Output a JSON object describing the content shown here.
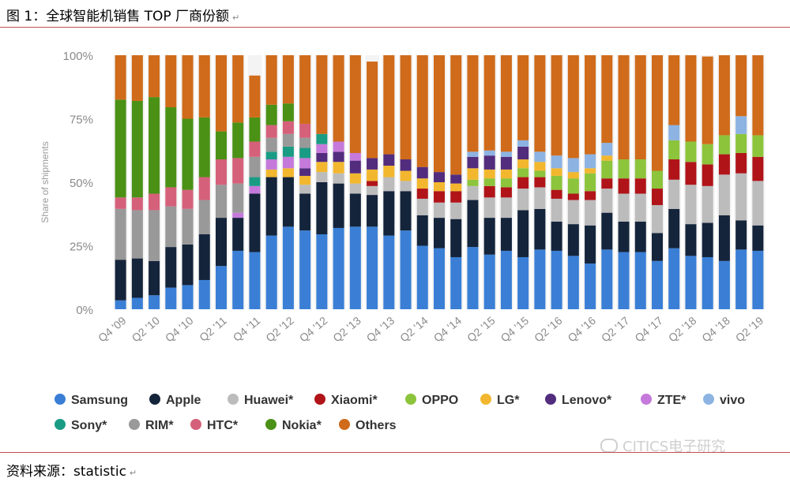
{
  "title": "图 1：全球智能机销售 TOP 厂商份额",
  "source": "资料来源：statistic",
  "watermark": "CITICS电子研究",
  "return_mark": "↵",
  "chart_data": {
    "type": "bar",
    "stacked": true,
    "ylabel": "Share of shipments",
    "ylim": [
      0,
      100
    ],
    "yticks": [
      "0%",
      "25%",
      "50%",
      "75%",
      "100%"
    ],
    "grid": false,
    "legend_position": "bottom",
    "categories": [
      "Q4 '09",
      "Q1 '10",
      "Q2 '10",
      "Q3 '10",
      "Q4 '10",
      "Q1 '11",
      "Q2 '11",
      "Q3 '11",
      "Q4 '11",
      "Q1 '12",
      "Q2 '12",
      "Q3 '12",
      "Q4 '12",
      "Q1 '13",
      "Q2 '13",
      "Q3 '13",
      "Q4 '13",
      "Q1 '14",
      "Q2 '14",
      "Q3 '14",
      "Q4 '14",
      "Q1 '15",
      "Q2 '15",
      "Q3 '15",
      "Q4 '15",
      "Q1 '16",
      "Q2 '16",
      "Q3 '16",
      "Q4 '16",
      "Q1 '17",
      "Q2 '17",
      "Q3 '17",
      "Q4 '17",
      "Q1 '18",
      "Q2 '18",
      "Q3 '18",
      "Q4 '18",
      "Q1 '19",
      "Q2 '19"
    ],
    "xtick_labels": [
      "Q4 '09",
      "",
      "Q2 '10",
      "",
      "Q4 '10",
      "",
      "Q2 '11",
      "",
      "Q4 '11",
      "",
      "Q2 '12",
      "",
      "Q4 '12",
      "",
      "Q2 '13",
      "",
      "Q4 '13",
      "",
      "Q2 '14",
      "",
      "Q4 '14",
      "",
      "Q2 '15",
      "",
      "Q4 '15",
      "",
      "Q2 '16",
      "",
      "Q4 '16",
      "",
      "Q2 '17",
      "",
      "Q4 '17",
      "",
      "Q2 '18",
      "",
      "Q4 '18",
      "",
      "Q2 '19"
    ],
    "series": [
      {
        "name": "Samsung",
        "color": "#3a7fd5",
        "values": [
          3.5,
          4.5,
          5.5,
          8.5,
          9.5,
          11.5,
          17,
          23,
          22.5,
          29,
          32.5,
          31,
          29.5,
          32,
          32.5,
          32.5,
          29,
          31,
          25,
          24,
          20.5,
          24.5,
          21.5,
          23,
          20.5,
          23.5,
          23,
          21,
          18,
          23.5,
          22.5,
          22.5,
          19,
          24,
          21,
          20.5,
          19,
          23.5,
          23
        ]
      },
      {
        "name": "Apple",
        "color": "#14243b",
        "values": [
          16,
          15.5,
          13.5,
          16,
          16,
          18,
          19,
          13,
          23,
          23,
          19.5,
          14.5,
          20.5,
          17.5,
          13,
          12.5,
          17.5,
          15.5,
          12,
          12,
          15,
          18.5,
          14.5,
          13,
          18.5,
          16,
          11.5,
          12.5,
          15,
          14.5,
          12,
          12,
          11,
          15.5,
          12.5,
          13.5,
          18,
          11.5,
          10
        ]
      },
      {
        "name": "Huawei*",
        "color": "#bcbcbc",
        "values": [
          0,
          0,
          0,
          0,
          0,
          0,
          0,
          0,
          0,
          0,
          0,
          3.5,
          4,
          4,
          4,
          3.5,
          5.5,
          4,
          6.5,
          6,
          6.5,
          5.5,
          8,
          8,
          8.5,
          8.5,
          9,
          9.5,
          10,
          9.5,
          11,
          11,
          11,
          11.5,
          15.5,
          14.5,
          16,
          18.5,
          17.5
        ]
      },
      {
        "name": "Xiaomi*",
        "color": "#b01419",
        "values": [
          0,
          0,
          0,
          0,
          0,
          0,
          0,
          0,
          0,
          0,
          0,
          0,
          0,
          0,
          0,
          2,
          0,
          0,
          4,
          4.5,
          4.5,
          0,
          4.5,
          4,
          4.5,
          4,
          3.5,
          2.5,
          3.5,
          4,
          6,
          6,
          6.5,
          8,
          9,
          8.5,
          8,
          8,
          9.5
        ]
      },
      {
        "name": "OPPO",
        "color": "#8cc43c",
        "values": [
          0,
          0,
          0,
          0,
          0,
          0,
          0,
          0,
          0,
          0,
          0,
          0,
          0,
          0,
          0,
          0,
          0,
          0,
          0,
          0,
          0,
          2.5,
          3,
          3.5,
          3.5,
          2.5,
          5.5,
          6,
          7,
          7,
          7.5,
          7.5,
          7,
          7.5,
          8,
          8,
          7.5,
          7.5,
          8.5
        ]
      },
      {
        "name": "LG*",
        "color": "#f2b72e",
        "values": [
          0,
          0,
          0,
          0,
          0,
          0,
          0,
          0,
          0,
          3,
          3.5,
          3.5,
          4,
          4.5,
          4,
          4.5,
          4.5,
          4,
          4,
          3.5,
          3,
          4.5,
          3.5,
          3.5,
          3.5,
          3.5,
          3,
          2.5,
          2,
          2,
          0,
          0,
          0,
          0,
          0,
          0,
          0,
          0,
          0
        ]
      },
      {
        "name": "Lenovo*",
        "color": "#522c7d",
        "values": [
          0,
          0,
          0,
          0,
          0,
          0,
          0,
          0,
          0,
          0,
          0,
          3,
          3.5,
          4,
          5,
          4.5,
          4.5,
          4.5,
          4.5,
          4,
          3.5,
          4.5,
          5.5,
          5,
          5,
          0,
          0,
          0,
          0,
          0,
          0,
          0,
          0,
          0,
          0,
          0,
          0,
          0,
          0
        ]
      },
      {
        "name": "ZTE*",
        "color": "#c57adb",
        "values": [
          0,
          0,
          0,
          0,
          0,
          0,
          0,
          2,
          3,
          4,
          4.5,
          4,
          3.5,
          4,
          3,
          0,
          0,
          0,
          0,
          0,
          0,
          0,
          0,
          0,
          0,
          0,
          0,
          0,
          0,
          0,
          0,
          0,
          0,
          0,
          0,
          0,
          0,
          0,
          0
        ]
      },
      {
        "name": "vivo",
        "color": "#8cb3e2",
        "values": [
          0,
          0,
          0,
          0,
          0,
          0,
          0,
          0,
          0,
          0,
          0,
          0,
          0,
          0,
          0,
          0,
          0,
          0,
          0,
          0,
          0,
          2,
          2,
          2,
          2.5,
          4,
          5,
          5.5,
          5.5,
          5,
          0,
          0,
          0,
          6,
          0,
          0,
          0,
          7,
          0
        ]
      },
      {
        "name": "Sony*",
        "color": "#1a9c84",
        "values": [
          0,
          0,
          0,
          0,
          0,
          0,
          0,
          0,
          3.5,
          3,
          4,
          4,
          4,
          0,
          0,
          0,
          0,
          0,
          0,
          0,
          0,
          0,
          0,
          0,
          0,
          0,
          0,
          0,
          0,
          0,
          0,
          0,
          0,
          0,
          0,
          0,
          0,
          0,
          0
        ]
      },
      {
        "name": "RIM*",
        "color": "#999999",
        "values": [
          20,
          19,
          20,
          16,
          14,
          13.5,
          13,
          11.5,
          8,
          5.5,
          5,
          4,
          0,
          0,
          0,
          0,
          0,
          0,
          0,
          0,
          0,
          0,
          0,
          0,
          0,
          0,
          0,
          0,
          0,
          0,
          0,
          0,
          0,
          0,
          0,
          0,
          0,
          0,
          0
        ]
      },
      {
        "name": "HTC*",
        "color": "#d5607a",
        "values": [
          4.5,
          5,
          6.5,
          7.5,
          7.5,
          9,
          10,
          10,
          6,
          5,
          5,
          5.5,
          0,
          0,
          0,
          0,
          0,
          0,
          0,
          0,
          0,
          0,
          0,
          0,
          0,
          0,
          0,
          0,
          0,
          0,
          0,
          0,
          0,
          0,
          0,
          0,
          0,
          0,
          0
        ]
      },
      {
        "name": "Nokia*",
        "color": "#4a9116",
        "values": [
          38.5,
          38,
          38,
          31.5,
          28,
          23.5,
          11,
          14,
          9.5,
          8,
          7,
          0,
          0,
          0,
          0,
          0,
          0,
          0,
          0,
          0,
          0,
          0,
          0,
          0,
          0,
          0,
          0,
          0,
          0,
          0,
          0,
          0,
          0,
          0,
          0,
          0,
          0,
          0,
          0
        ]
      },
      {
        "name": "Others",
        "color": "#cf6b1a",
        "values": [
          17.5,
          18,
          16.5,
          20.5,
          25,
          24.5,
          30,
          26.5,
          16.5,
          19.5,
          19,
          27,
          31,
          34,
          38.5,
          38,
          39,
          41,
          44,
          46,
          47,
          38,
          37.5,
          38,
          33.5,
          38,
          39.5,
          40.5,
          39,
          34.5,
          41,
          41,
          45.5,
          27.5,
          34,
          34.5,
          31.5,
          24,
          31.5
        ]
      }
    ]
  }
}
